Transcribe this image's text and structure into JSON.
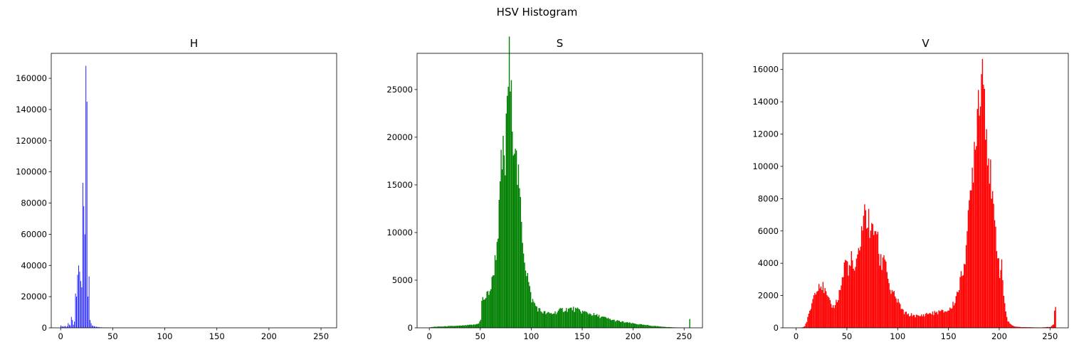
{
  "figure": {
    "suptitle": "HSV Histogram"
  },
  "chart_data": [
    {
      "type": "bar",
      "title": "H",
      "color": "#0000ff",
      "xlabel": "",
      "ylabel": "",
      "xlim": [
        -9,
        265
      ],
      "ylim": [
        0,
        176000
      ],
      "xticks": [
        0,
        50,
        100,
        150,
        200,
        250
      ],
      "yticks": [
        0,
        20000,
        40000,
        60000,
        80000,
        100000,
        120000,
        140000,
        160000
      ],
      "bins": [
        0,
        1,
        2,
        3,
        4,
        5,
        6,
        7,
        8,
        9,
        10,
        11,
        12,
        13,
        14,
        15,
        16,
        17,
        18,
        19,
        20,
        21,
        22,
        23,
        24,
        25,
        26,
        27,
        28,
        29,
        30,
        31,
        32,
        33,
        34,
        35,
        36,
        37,
        38,
        39,
        40,
        41,
        42,
        43,
        44,
        45,
        46,
        47,
        48,
        49,
        50,
        55,
        60,
        70,
        80,
        90,
        100,
        120,
        150,
        200,
        250,
        255
      ],
      "values": [
        1500,
        1000,
        800,
        900,
        1200,
        600,
        1000,
        3000,
        2000,
        1500,
        7000,
        5000,
        2000,
        4000,
        22000,
        20000,
        34000,
        40000,
        36000,
        30000,
        26000,
        93000,
        78000,
        60000,
        168000,
        145000,
        20000,
        33000,
        5000,
        3000,
        1500,
        1200,
        1000,
        800,
        700,
        600,
        500,
        400,
        300,
        300,
        250,
        200,
        200,
        150,
        150,
        120,
        100,
        100,
        100,
        100,
        100,
        80,
        80,
        80,
        60,
        60,
        50,
        40,
        40,
        30,
        30,
        30
      ]
    },
    {
      "type": "bar",
      "title": "S",
      "color": "#008000",
      "xlabel": "",
      "ylabel": "",
      "xlim": [
        -12,
        268
      ],
      "ylim": [
        0,
        28800
      ],
      "xticks": [
        0,
        50,
        100,
        150,
        200,
        250
      ],
      "yticks": [
        0,
        5000,
        10000,
        15000,
        20000,
        25000
      ],
      "anchors": [
        [
          0,
          50
        ],
        [
          5,
          120
        ],
        [
          10,
          130
        ],
        [
          20,
          180
        ],
        [
          30,
          220
        ],
        [
          40,
          300
        ],
        [
          45,
          350
        ],
        [
          48,
          500
        ],
        [
          50,
          800
        ],
        [
          51,
          2900
        ],
        [
          55,
          3200
        ],
        [
          58,
          3800
        ],
        [
          60,
          4200
        ],
        [
          62,
          5500
        ],
        [
          64,
          7000
        ],
        [
          66,
          9000
        ],
        [
          68,
          12000
        ],
        [
          70,
          16500
        ],
        [
          72,
          18000
        ],
        [
          74,
          17000
        ],
        [
          75,
          20000
        ],
        [
          76,
          25000
        ],
        [
          77,
          26000
        ],
        [
          78,
          27400
        ],
        [
          79,
          25000
        ],
        [
          80,
          23000
        ],
        [
          81,
          24000
        ],
        [
          82,
          21000
        ],
        [
          83,
          19500
        ],
        [
          84,
          21200
        ],
        [
          85,
          17000
        ],
        [
          88,
          14000
        ],
        [
          90,
          11000
        ],
        [
          92,
          8500
        ],
        [
          94,
          6500
        ],
        [
          96,
          5500
        ],
        [
          98,
          4000
        ],
        [
          100,
          3000
        ],
        [
          103,
          2500
        ],
        [
          106,
          2000
        ],
        [
          110,
          1700
        ],
        [
          115,
          1500
        ],
        [
          120,
          1500
        ],
        [
          125,
          1700
        ],
        [
          130,
          1900
        ],
        [
          140,
          2000
        ],
        [
          150,
          1700
        ],
        [
          160,
          1400
        ],
        [
          170,
          1100
        ],
        [
          180,
          800
        ],
        [
          190,
          600
        ],
        [
          200,
          450
        ],
        [
          210,
          300
        ],
        [
          220,
          200
        ],
        [
          230,
          100
        ],
        [
          240,
          50
        ],
        [
          250,
          20
        ],
        [
          254,
          10
        ],
        [
          255,
          900
        ]
      ]
    },
    {
      "type": "bar",
      "title": "V",
      "color": "#ff0000",
      "xlabel": "",
      "ylabel": "",
      "xlim": [
        -13,
        268
      ],
      "ylim": [
        0,
        17000
      ],
      "xticks": [
        0,
        50,
        100,
        150,
        200,
        250
      ],
      "yticks": [
        0,
        2000,
        4000,
        6000,
        8000,
        10000,
        12000,
        14000,
        16000
      ],
      "anchors": [
        [
          0,
          0
        ],
        [
          5,
          10
        ],
        [
          8,
          100
        ],
        [
          10,
          400
        ],
        [
          13,
          1000
        ],
        [
          16,
          1800
        ],
        [
          20,
          2600
        ],
        [
          23,
          2800
        ],
        [
          27,
          2400
        ],
        [
          30,
          1900
        ],
        [
          33,
          1500
        ],
        [
          36,
          1300
        ],
        [
          40,
          1700
        ],
        [
          43,
          2400
        ],
        [
          46,
          3300
        ],
        [
          48,
          4200
        ],
        [
          50,
          3900
        ],
        [
          52,
          3600
        ],
        [
          54,
          4200
        ],
        [
          56,
          3700
        ],
        [
          58,
          3400
        ],
        [
          60,
          4200
        ],
        [
          63,
          5600
        ],
        [
          66,
          6800
        ],
        [
          68,
          7100
        ],
        [
          70,
          6700
        ],
        [
          72,
          6300
        ],
        [
          74,
          5800
        ],
        [
          76,
          6000
        ],
        [
          78,
          6400
        ],
        [
          80,
          5200
        ],
        [
          82,
          4200
        ],
        [
          84,
          4000
        ],
        [
          86,
          4600
        ],
        [
          88,
          4300
        ],
        [
          90,
          3000
        ],
        [
          93,
          2200
        ],
        [
          96,
          2000
        ],
        [
          100,
          1600
        ],
        [
          105,
          1000
        ],
        [
          110,
          800
        ],
        [
          115,
          800
        ],
        [
          120,
          700
        ],
        [
          125,
          800
        ],
        [
          130,
          900
        ],
        [
          135,
          900
        ],
        [
          140,
          1000
        ],
        [
          145,
          1000
        ],
        [
          150,
          1100
        ],
        [
          153,
          1300
        ],
        [
          156,
          1700
        ],
        [
          160,
          2600
        ],
        [
          163,
          3300
        ],
        [
          166,
          4600
        ],
        [
          169,
          6400
        ],
        [
          172,
          8700
        ],
        [
          175,
          11300
        ],
        [
          178,
          13600
        ],
        [
          181,
          15600
        ],
        [
          183,
          16300
        ],
        [
          185,
          14800
        ],
        [
          187,
          12500
        ],
        [
          190,
          10000
        ],
        [
          192,
          8200
        ],
        [
          194,
          6800
        ],
        [
          196,
          5900
        ],
        [
          198,
          4800
        ],
        [
          200,
          3600
        ],
        [
          202,
          3700
        ],
        [
          204,
          2100
        ],
        [
          206,
          1000
        ],
        [
          208,
          400
        ],
        [
          211,
          200
        ],
        [
          215,
          80
        ],
        [
          220,
          50
        ],
        [
          240,
          20
        ],
        [
          250,
          60
        ],
        [
          253,
          200
        ],
        [
          254,
          1200
        ],
        [
          255,
          1300
        ]
      ]
    }
  ]
}
